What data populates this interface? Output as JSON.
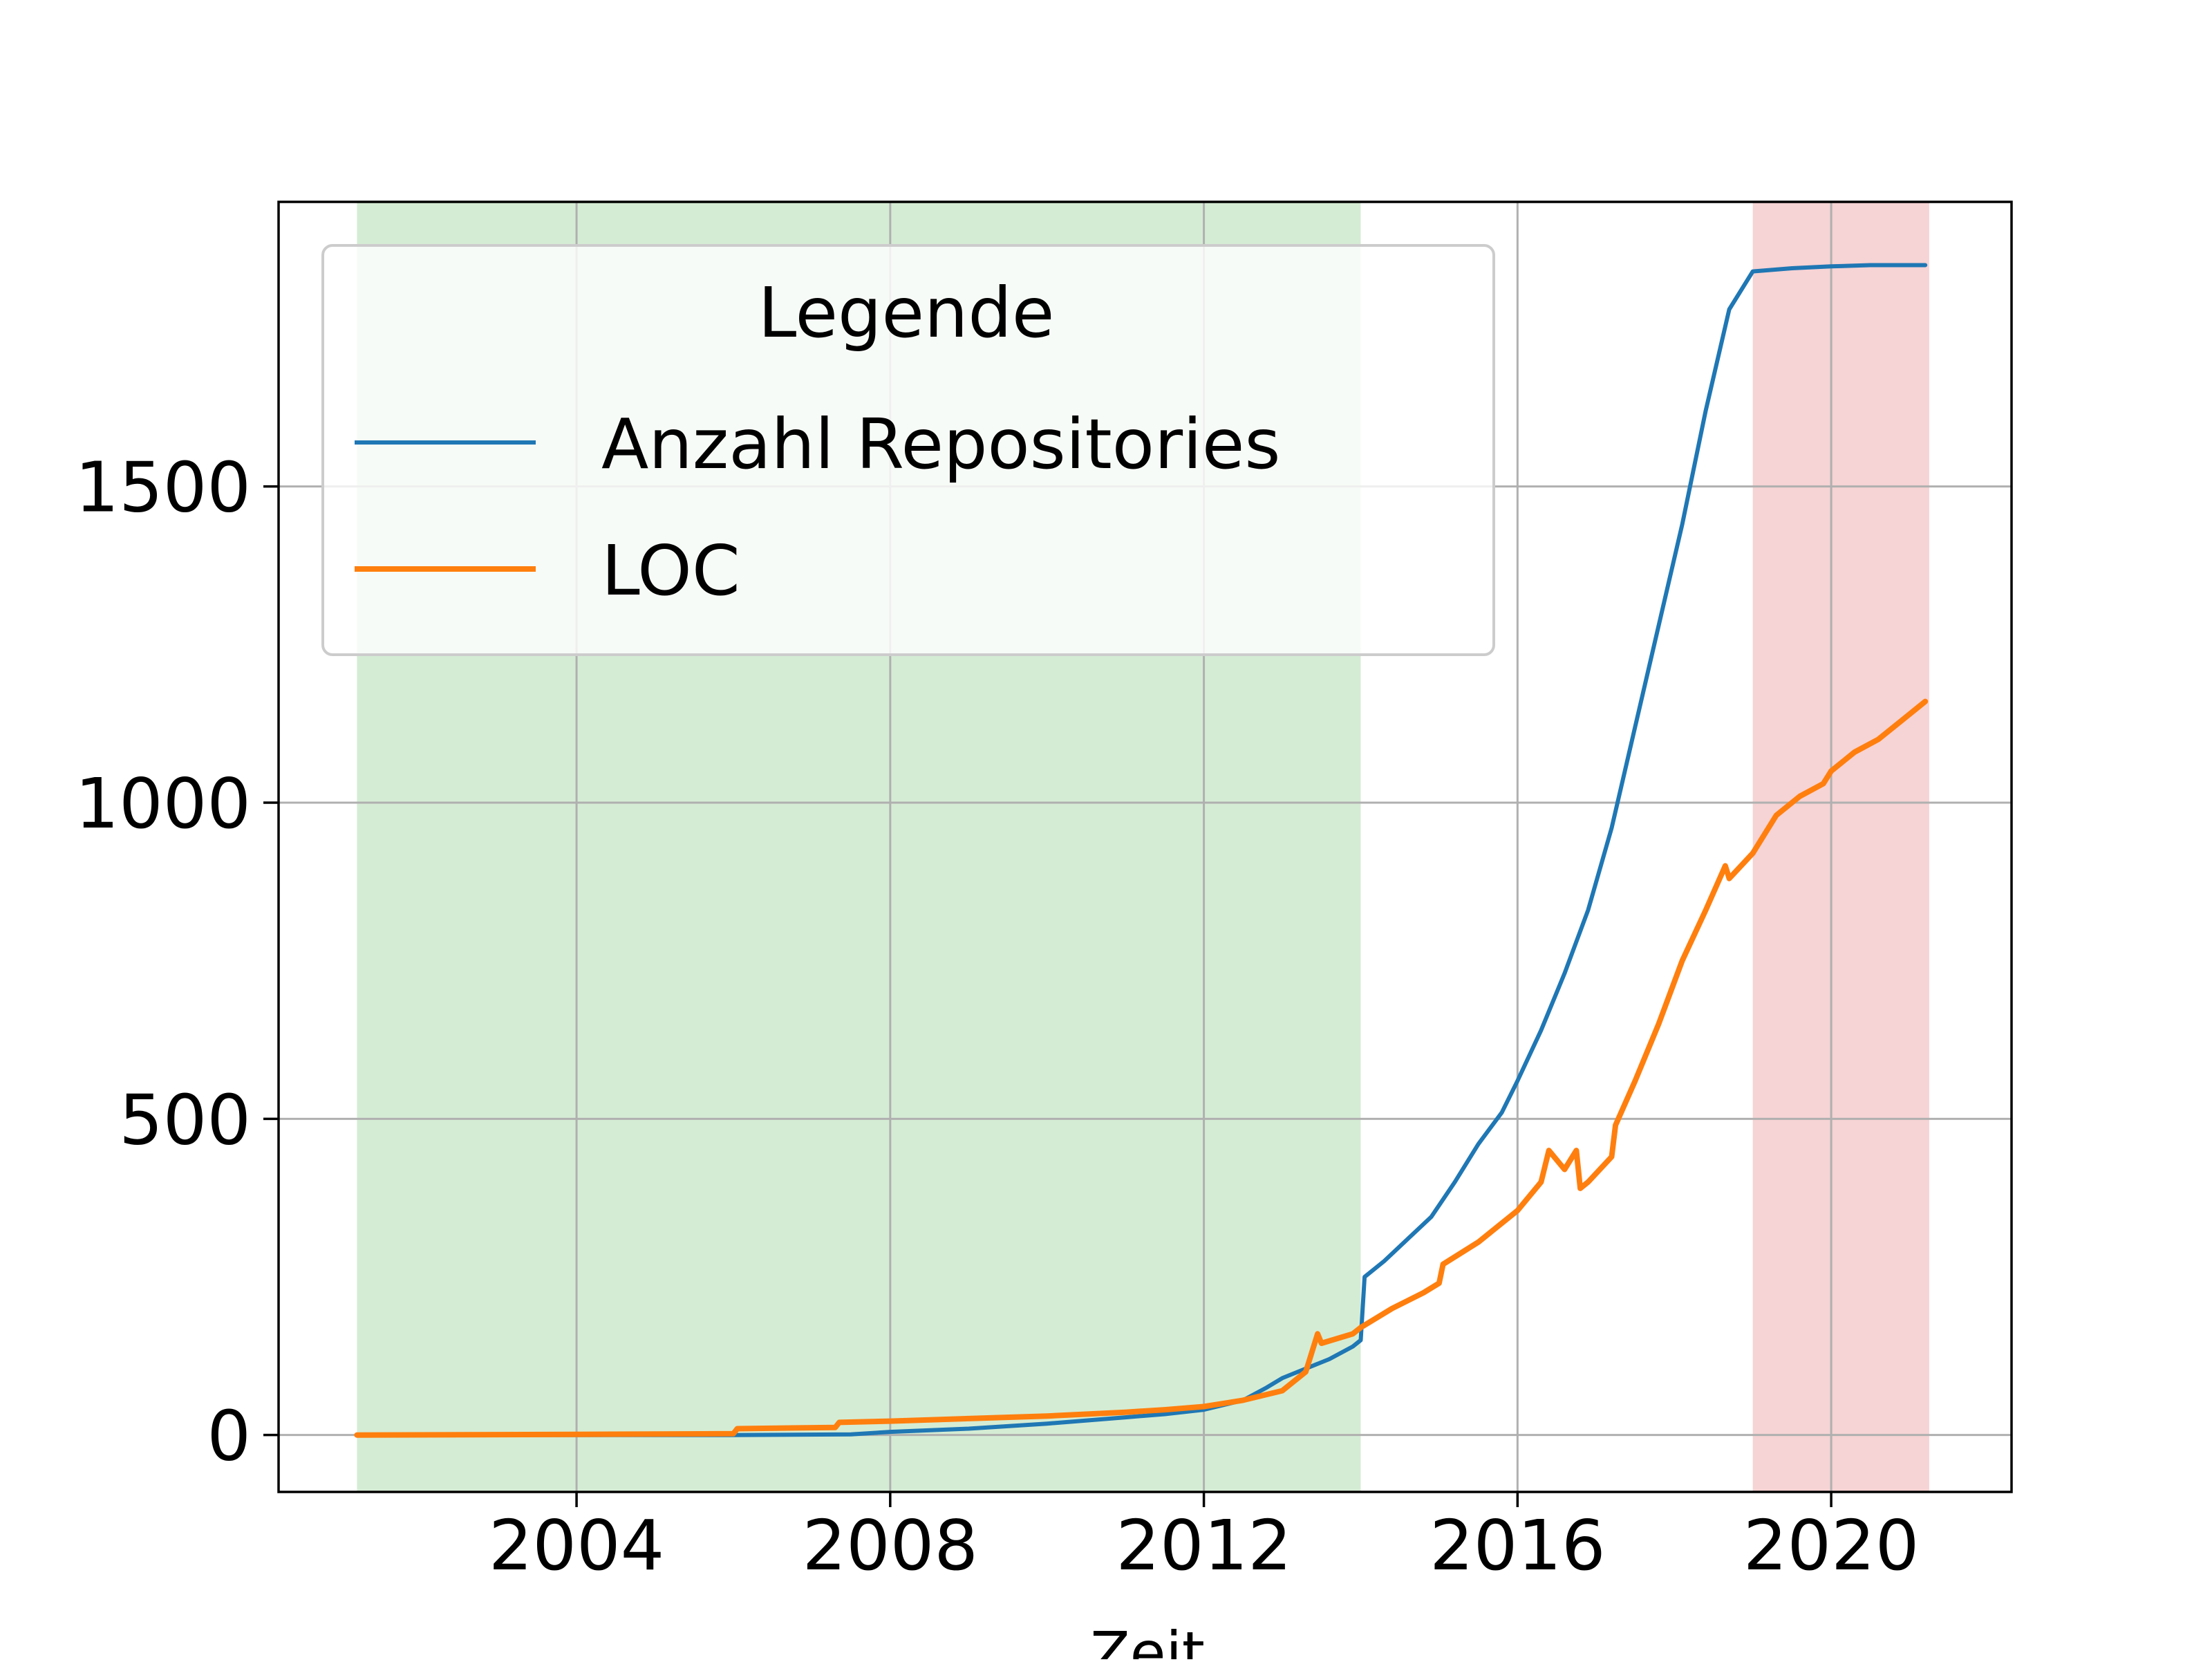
{
  "chart_data": {
    "type": "line",
    "title": "",
    "xlabel": "Zeit",
    "ylabel": "",
    "xlim": [
      2000.2,
      2022.3
    ],
    "ylim": [
      -90,
      1950
    ],
    "x_ticks": [
      2004,
      2008,
      2012,
      2016,
      2020
    ],
    "x_tick_labels": [
      "2004",
      "2008",
      "2012",
      "2016",
      "2020"
    ],
    "y_ticks": [
      0,
      500,
      1000,
      1500
    ],
    "y_tick_labels": [
      "0",
      "500",
      "1000",
      "1500"
    ],
    "grid": true,
    "shaded_regions": [
      {
        "x_start": 2001.2,
        "x_end": 2014.0,
        "color": "#d5ecd4"
      },
      {
        "x_start": 2019.0,
        "x_end": 2021.25,
        "color": "#f6d3d4"
      }
    ],
    "legend": {
      "title": "Legende",
      "placement": "upper-left"
    },
    "series": [
      {
        "name": "Anzahl Repositories",
        "color": "#1f77b4",
        "x": [
          2001.2,
          2004.0,
          2006.0,
          2007.5,
          2008.0,
          2009.0,
          2010.0,
          2011.0,
          2011.5,
          2012.0,
          2012.5,
          2012.8,
          2013.0,
          2013.3,
          2013.6,
          2013.9,
          2014.0,
          2014.05,
          2014.3,
          2014.6,
          2014.9,
          2015.2,
          2015.5,
          2015.8,
          2016.0,
          2016.3,
          2016.6,
          2016.9,
          2017.2,
          2017.5,
          2017.8,
          2018.1,
          2018.4,
          2018.7,
          2018.9,
          2019.0,
          2019.5,
          2020.0,
          2020.5,
          2021.0,
          2021.2
        ],
        "y": [
          0,
          0,
          0,
          1,
          5,
          10,
          18,
          28,
          33,
          40,
          55,
          75,
          90,
          105,
          120,
          140,
          150,
          250,
          275,
          310,
          345,
          400,
          460,
          510,
          560,
          640,
          730,
          830,
          960,
          1120,
          1280,
          1440,
          1620,
          1780,
          1820,
          1840,
          1845,
          1848,
          1850,
          1850,
          1850
        ]
      },
      {
        "name": "LOC",
        "color": "#ff7f0e",
        "x": [
          2001.2,
          2004.0,
          2006.0,
          2006.05,
          2007.3,
          2007.35,
          2008.0,
          2009.0,
          2010.0,
          2011.0,
          2011.5,
          2012.0,
          2012.5,
          2013.0,
          2013.3,
          2013.45,
          2013.5,
          2013.9,
          2014.0,
          2014.4,
          2014.8,
          2015.0,
          2015.05,
          2015.5,
          2016.0,
          2016.3,
          2016.4,
          2016.6,
          2016.75,
          2016.8,
          2016.9,
          2017.2,
          2017.25,
          2017.5,
          2017.8,
          2018.1,
          2018.4,
          2018.65,
          2018.7,
          2019.0,
          2019.3,
          2019.6,
          2019.9,
          2020.0,
          2020.3,
          2020.6,
          2020.9,
          2021.2
        ],
        "y": [
          0,
          1,
          2,
          10,
          12,
          20,
          22,
          26,
          30,
          36,
          40,
          45,
          55,
          70,
          100,
          160,
          145,
          160,
          170,
          200,
          225,
          240,
          270,
          305,
          355,
          400,
          450,
          420,
          450,
          390,
          400,
          440,
          490,
          560,
          650,
          750,
          830,
          900,
          880,
          920,
          980,
          1010,
          1030,
          1050,
          1080,
          1100,
          1130,
          1160
        ]
      }
    ]
  }
}
